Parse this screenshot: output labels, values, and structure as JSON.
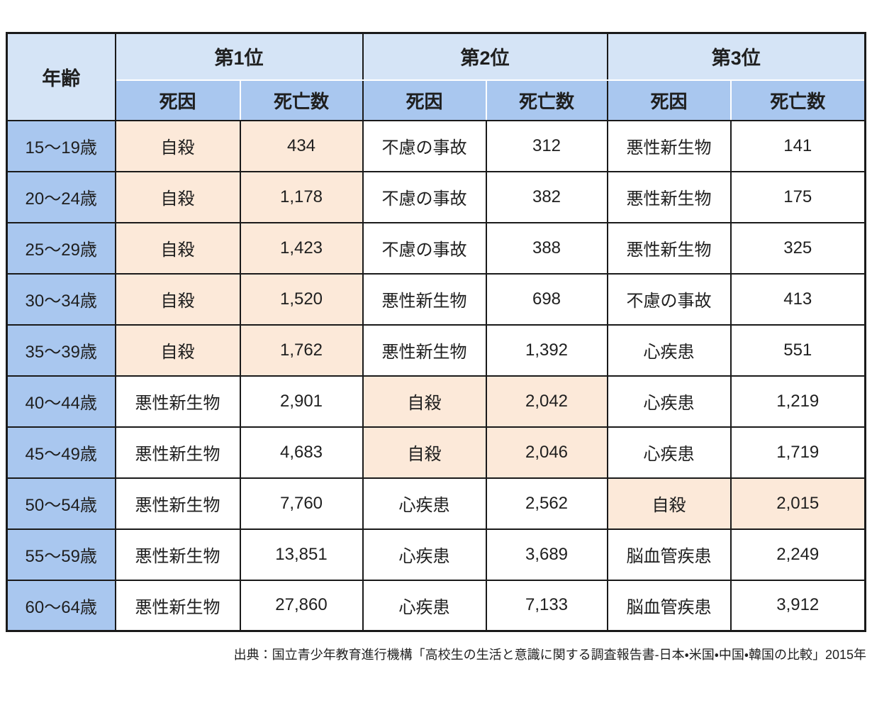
{
  "colors": {
    "header_light_blue": "#D5E4F6",
    "header_medium_blue": "#A9C7EF",
    "age_cell_blue": "#A9C7EF",
    "highlight_orange": "#FCE9D9",
    "border_black": "#1a1a1a",
    "text": "#1f1f1f"
  },
  "table": {
    "age_header": "年齢",
    "rank_headers": [
      "第1位",
      "第2位",
      "第3位"
    ],
    "sub_headers": {
      "cause": "死因",
      "deaths": "死亡数"
    },
    "rows": [
      {
        "age": "15〜19歳",
        "cells": [
          {
            "cause": "自殺",
            "deaths": "434",
            "highlight": true
          },
          {
            "cause": "不慮の事故",
            "deaths": "312",
            "highlight": false
          },
          {
            "cause": "悪性新生物",
            "deaths": "141",
            "highlight": false
          }
        ]
      },
      {
        "age": "20〜24歳",
        "cells": [
          {
            "cause": "自殺",
            "deaths": "1,178",
            "highlight": true
          },
          {
            "cause": "不慮の事故",
            "deaths": "382",
            "highlight": false
          },
          {
            "cause": "悪性新生物",
            "deaths": "175",
            "highlight": false
          }
        ]
      },
      {
        "age": "25〜29歳",
        "cells": [
          {
            "cause": "自殺",
            "deaths": "1,423",
            "highlight": true
          },
          {
            "cause": "不慮の事故",
            "deaths": "388",
            "highlight": false
          },
          {
            "cause": "悪性新生物",
            "deaths": "325",
            "highlight": false
          }
        ]
      },
      {
        "age": "30〜34歳",
        "cells": [
          {
            "cause": "自殺",
            "deaths": "1,520",
            "highlight": true
          },
          {
            "cause": "悪性新生物",
            "deaths": "698",
            "highlight": false
          },
          {
            "cause": "不慮の事故",
            "deaths": "413",
            "highlight": false
          }
        ]
      },
      {
        "age": "35〜39歳",
        "cells": [
          {
            "cause": "自殺",
            "deaths": "1,762",
            "highlight": true
          },
          {
            "cause": "悪性新生物",
            "deaths": "1,392",
            "highlight": false
          },
          {
            "cause": "心疾患",
            "deaths": "551",
            "highlight": false
          }
        ]
      },
      {
        "age": "40〜44歳",
        "cells": [
          {
            "cause": "悪性新生物",
            "deaths": "2,901",
            "highlight": false
          },
          {
            "cause": "自殺",
            "deaths": "2,042",
            "highlight": true
          },
          {
            "cause": "心疾患",
            "deaths": "1,219",
            "highlight": false
          }
        ]
      },
      {
        "age": "45〜49歳",
        "cells": [
          {
            "cause": "悪性新生物",
            "deaths": "4,683",
            "highlight": false
          },
          {
            "cause": "自殺",
            "deaths": "2,046",
            "highlight": true
          },
          {
            "cause": "心疾患",
            "deaths": "1,719",
            "highlight": false
          }
        ]
      },
      {
        "age": "50〜54歳",
        "cells": [
          {
            "cause": "悪性新生物",
            "deaths": "7,760",
            "highlight": false
          },
          {
            "cause": "心疾患",
            "deaths": "2,562",
            "highlight": false
          },
          {
            "cause": "自殺",
            "deaths": "2,015",
            "highlight": true
          }
        ]
      },
      {
        "age": "55〜59歳",
        "cells": [
          {
            "cause": "悪性新生物",
            "deaths": "13,851",
            "highlight": false
          },
          {
            "cause": "心疾患",
            "deaths": "3,689",
            "highlight": false
          },
          {
            "cause": "脳血管疾患",
            "deaths": "2,249",
            "highlight": false
          }
        ]
      },
      {
        "age": "60〜64歳",
        "cells": [
          {
            "cause": "悪性新生物",
            "deaths": "27,860",
            "highlight": false
          },
          {
            "cause": "心疾患",
            "deaths": "7,133",
            "highlight": false
          },
          {
            "cause": "脳血管疾患",
            "deaths": "3,912",
            "highlight": false
          }
        ]
      }
    ]
  },
  "chart_data": {
    "type": "table",
    "title": "",
    "columns": [
      "年齢",
      "第1位 死因",
      "第1位 死亡数",
      "第2位 死因",
      "第2位 死亡数",
      "第3位 死因",
      "第3位 死亡数"
    ],
    "rows": [
      [
        "15〜19歳",
        "自殺",
        434,
        "不慮の事故",
        312,
        "悪性新生物",
        141
      ],
      [
        "20〜24歳",
        "自殺",
        1178,
        "不慮の事故",
        382,
        "悪性新生物",
        175
      ],
      [
        "25〜29歳",
        "自殺",
        1423,
        "不慮の事故",
        388,
        "悪性新生物",
        325
      ],
      [
        "30〜34歳",
        "自殺",
        1520,
        "悪性新生物",
        698,
        "不慮の事故",
        413
      ],
      [
        "35〜39歳",
        "自殺",
        1762,
        "悪性新生物",
        1392,
        "心疾患",
        551
      ],
      [
        "40〜44歳",
        "悪性新生物",
        2901,
        "自殺",
        2042,
        "心疾患",
        1219
      ],
      [
        "45〜49歳",
        "悪性新生物",
        4683,
        "自殺",
        2046,
        "心疾患",
        1719
      ],
      [
        "50〜54歳",
        "悪性新生物",
        7760,
        "心疾患",
        2562,
        "自殺",
        2015
      ],
      [
        "55〜59歳",
        "悪性新生物",
        13851,
        "心疾患",
        3689,
        "脳血管疾患",
        2249
      ],
      [
        "60〜64歳",
        "悪性新生物",
        27860,
        "心疾患",
        7133,
        "脳血管疾患",
        3912
      ]
    ],
    "highlighted_cells_note": "自殺 (suicide) cause+count cells have peach background",
    "legend_position": "none",
    "grid": true
  },
  "footer": {
    "source": "出典：国立青少年教育進行機構「高校生の生活と意識に関する調査報告書-日本・米国・中国・韓国の比較」2015年"
  }
}
